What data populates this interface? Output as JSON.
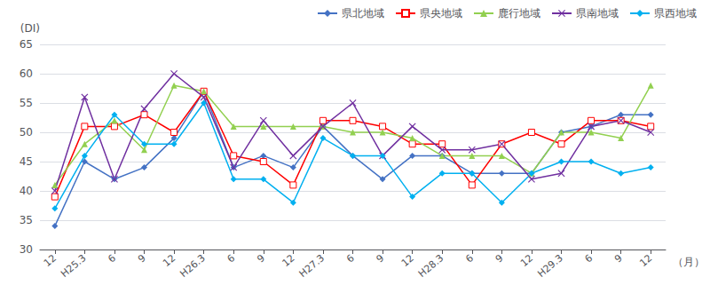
{
  "chart_data": {
    "type": "line",
    "categories": [
      "12",
      "H25.3",
      "6",
      "9",
      "12",
      "H26.3",
      "6",
      "9",
      "12",
      "H27.3",
      "6",
      "9",
      "12",
      "H28.3",
      "6",
      "9",
      "12",
      "H29.3",
      "6",
      "9",
      "12"
    ],
    "series": [
      {
        "name": "県北地域",
        "color": "#4472C4",
        "marker": "diamond",
        "values": [
          34,
          45,
          42,
          44,
          49,
          57,
          44,
          46,
          44,
          51,
          46,
          42,
          46,
          46,
          43,
          43,
          43,
          50,
          51,
          53,
          53
        ]
      },
      {
        "name": "県央地域",
        "color": "#FF0000",
        "marker": "open-square",
        "values": [
          39,
          51,
          51,
          53,
          50,
          57,
          46,
          45,
          41,
          52,
          52,
          51,
          48,
          48,
          41,
          48,
          50,
          48,
          52,
          52,
          51
        ]
      },
      {
        "name": "鹿行地域",
        "color": "#92D050",
        "marker": "triangle",
        "values": [
          41,
          48,
          52,
          47,
          58,
          57,
          51,
          51,
          51,
          51,
          50,
          50,
          49,
          46,
          46,
          46,
          43,
          50,
          50,
          49,
          58
        ]
      },
      {
        "name": "県南地域",
        "color": "#7030A0",
        "marker": "x",
        "values": [
          40,
          56,
          42,
          54,
          60,
          56,
          44,
          52,
          46,
          51,
          55,
          46,
          51,
          47,
          47,
          48,
          42,
          43,
          51,
          52,
          50
        ]
      },
      {
        "name": "県西地域",
        "color": "#00B0F0",
        "marker": "diamond",
        "values": [
          37,
          46,
          53,
          48,
          48,
          55,
          42,
          42,
          38,
          49,
          46,
          46,
          39,
          43,
          43,
          38,
          43,
          45,
          45,
          43,
          44
        ]
      }
    ],
    "ylim": [
      30,
      65
    ],
    "yticks": [
      30,
      35,
      40,
      45,
      50,
      55,
      60,
      65
    ],
    "ylabel": "(DI)",
    "xlabel": "（月）",
    "grid": true,
    "legend": "top-right"
  }
}
